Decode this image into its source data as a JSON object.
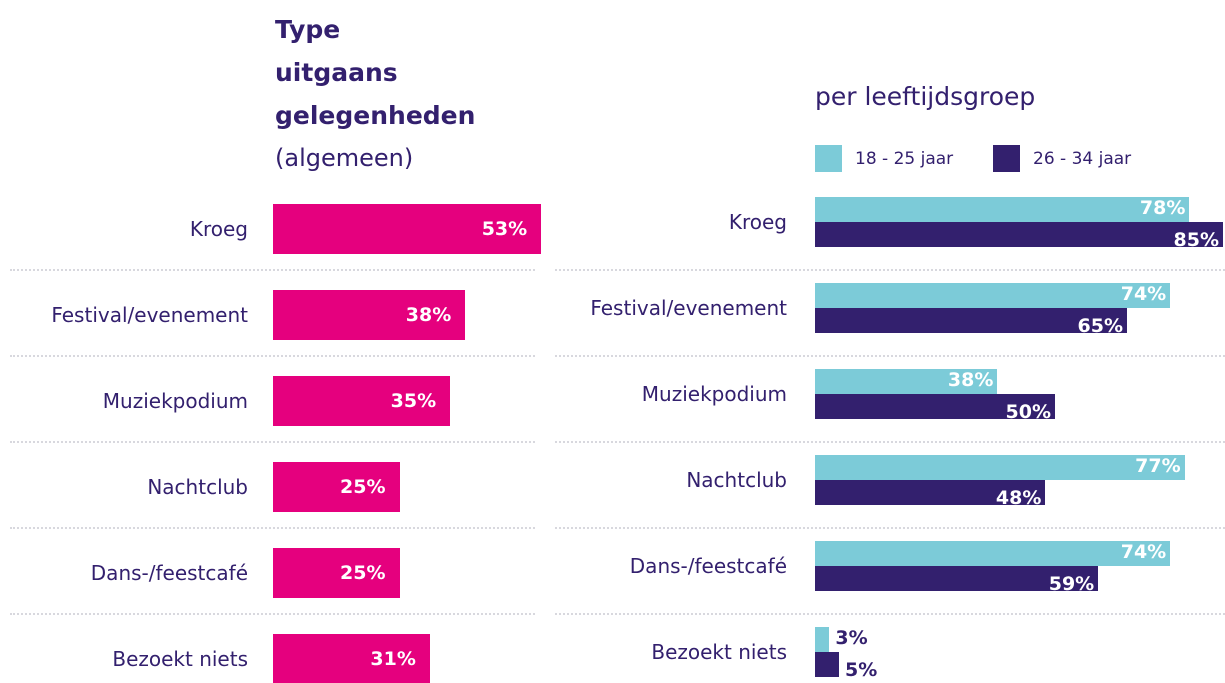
{
  "chart_data": [
    {
      "type": "bar",
      "orientation": "horizontal",
      "title": [
        "Type",
        "uitgaans",
        "gelegenheden"
      ],
      "subtitle": "(algemeen)",
      "categories": [
        "Kroeg",
        "Festival/evenement",
        "Muziekpodium",
        "Nachtclub",
        "Dans-/feestcafé",
        "Bezoekt niets"
      ],
      "values": [
        53,
        38,
        35,
        25,
        25,
        31
      ],
      "value_labels": [
        "53%",
        "38%",
        "35%",
        "25%",
        "25%",
        "31%"
      ],
      "color": "#e5007e"
    },
    {
      "type": "grouped_bar",
      "orientation": "horizontal",
      "title": "per  leeftijdsgroep",
      "categories": [
        "Kroeg",
        "Festival/evenement",
        "Muziekpodium",
        "Nachtclub",
        "Dans-/feestcafé",
        "Bezoekt niets"
      ],
      "series": [
        {
          "name": "18 - 25 jaar",
          "color": "#7ccbd8",
          "values": [
            78,
            74,
            38,
            77,
            74,
            3
          ],
          "value_labels": [
            "78%",
            "74%",
            "38%",
            "77%",
            "74%",
            "3%"
          ]
        },
        {
          "name": "26 - 34 jaar",
          "color": "#33206e",
          "values": [
            85,
            65,
            50,
            48,
            59,
            5
          ],
          "value_labels": [
            "85%",
            "65%",
            "50%",
            "48%",
            "59%",
            "5%"
          ]
        }
      ]
    }
  ]
}
